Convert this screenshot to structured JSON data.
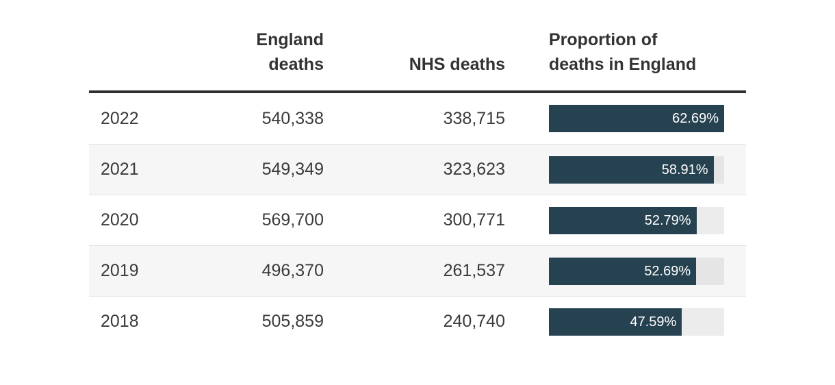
{
  "colors": {
    "bar_fill": "#264250",
    "bar_track_white_row": "#ececec",
    "bar_track_striped_row": "#e5e5e5",
    "row_stripe": "#f6f6f6",
    "header_rule": "#2e2e2e",
    "text": "#3a3a3a",
    "bar_label_text": "#ffffff"
  },
  "table": {
    "headers": {
      "year": "",
      "england": "England deaths",
      "nhs": "NHS deaths",
      "proportion": "Proportion of deaths in England"
    },
    "rows": [
      {
        "year": "2022",
        "england_deaths": "540,338",
        "nhs_deaths": "338,715",
        "proportion_label": "62.69%",
        "proportion_value": 62.69,
        "striped": false
      },
      {
        "year": "2021",
        "england_deaths": "549,349",
        "nhs_deaths": "323,623",
        "proportion_label": "58.91%",
        "proportion_value": 58.91,
        "striped": true
      },
      {
        "year": "2020",
        "england_deaths": "569,700",
        "nhs_deaths": "300,771",
        "proportion_label": "52.79%",
        "proportion_value": 52.79,
        "striped": false
      },
      {
        "year": "2019",
        "england_deaths": "496,370",
        "nhs_deaths": "261,537",
        "proportion_label": "52.69%",
        "proportion_value": 52.69,
        "striped": true
      },
      {
        "year": "2018",
        "england_deaths": "505,859",
        "nhs_deaths": "240,740",
        "proportion_label": "47.59%",
        "proportion_value": 47.59,
        "striped": false
      }
    ],
    "max_proportion_value": 62.69
  },
  "chart_data": {
    "type": "table",
    "title": "",
    "columns": [
      "",
      "England deaths",
      "NHS deaths",
      "Proportion of deaths in England"
    ],
    "categories": [
      "2022",
      "2021",
      "2020",
      "2019",
      "2018"
    ],
    "series": [
      {
        "name": "England deaths",
        "values": [
          540338,
          549349,
          569700,
          496370,
          505859
        ]
      },
      {
        "name": "NHS deaths",
        "values": [
          338715,
          323623,
          300771,
          261537,
          240740
        ]
      },
      {
        "name": "Proportion of deaths in England (%)",
        "values": [
          62.69,
          58.91,
          52.79,
          52.69,
          47.59
        ]
      }
    ],
    "embedded_bars": {
      "column": "Proportion of deaths in England",
      "values": [
        62.69,
        58.91,
        52.79,
        52.69,
        47.59
      ],
      "scaling": "bar width proportional to value, max value (62.69) fills full track",
      "bar_color": "#264250",
      "label_position": "inside-right, white text"
    },
    "layout": "striped table rows, thick dark rule under header, grid off, no legend"
  }
}
